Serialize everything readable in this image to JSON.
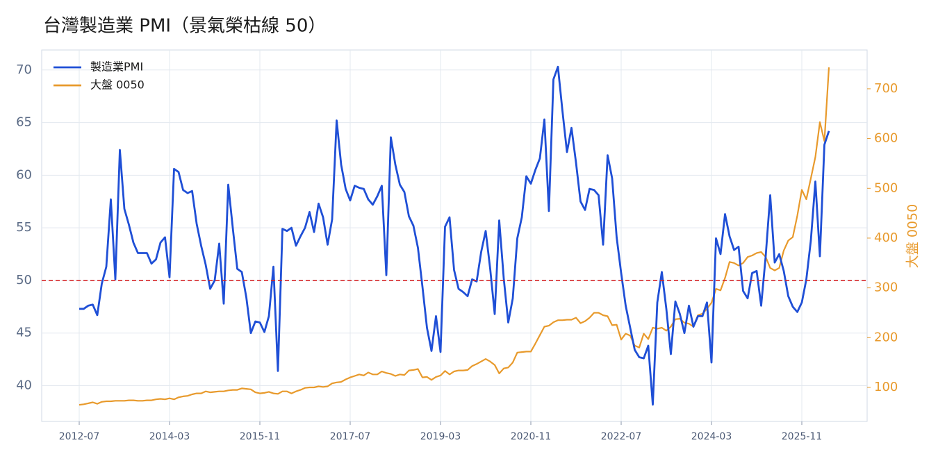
{
  "chart_data": {
    "type": "line",
    "title": "台灣製造業 PMI（景氣榮枯線 50）",
    "y2label": "大盤 0050",
    "categories": [
      "2012-07",
      null,
      null,
      null,
      null,
      null,
      null,
      null,
      null,
      null,
      null,
      null,
      null,
      null,
      null,
      null,
      null,
      null,
      null,
      null,
      "2014-03",
      null,
      null,
      null,
      null,
      null,
      null,
      null,
      null,
      null,
      null,
      null,
      null,
      null,
      null,
      null,
      null,
      null,
      null,
      null,
      "2015-11",
      null,
      null,
      null,
      null,
      null,
      null,
      null,
      null,
      null,
      null,
      null,
      null,
      null,
      null,
      null,
      null,
      null,
      null,
      null,
      "2017-07",
      null,
      null,
      null,
      null,
      null,
      null,
      null,
      null,
      null,
      null,
      null,
      null,
      null,
      null,
      null,
      null,
      null,
      null,
      null,
      "2019-03",
      null,
      null,
      null,
      null,
      null,
      null,
      null,
      null,
      null,
      null,
      null,
      null,
      null,
      null,
      null,
      null,
      null,
      null,
      null,
      "2020-11",
      null,
      null,
      null,
      null,
      null,
      null,
      null,
      null,
      null,
      null,
      null,
      null,
      null,
      null,
      null,
      null,
      null,
      null,
      null,
      "2022-07",
      null,
      null,
      null,
      null,
      null,
      null,
      null,
      null,
      null,
      null,
      null,
      null,
      null,
      null,
      null,
      null,
      null,
      null,
      null,
      "2024-03",
      null,
      null,
      null,
      null,
      null,
      null,
      null,
      null,
      null,
      null,
      null,
      null,
      null,
      null,
      null,
      null,
      null,
      null,
      null,
      "2025-11",
      null,
      null,
      null,
      null,
      null,
      null
    ],
    "series": [
      {
        "name": "製造業PMI",
        "color": "#1f4fd6",
        "axis": "y",
        "values": [
          47.3,
          47.3,
          47.6,
          47.7,
          46.7,
          49.7,
          51.3,
          57.7,
          50.1,
          62.4,
          56.8,
          55.3,
          53.6,
          52.6,
          52.6,
          52.6,
          51.6,
          52.0,
          53.6,
          54.1,
          50.3,
          60.6,
          60.3,
          58.6,
          58.3,
          58.5,
          55.4,
          53.3,
          51.5,
          49.2,
          50.0,
          53.5,
          47.8,
          59.1,
          55.0,
          51.1,
          50.8,
          48.4,
          45.0,
          46.1,
          46.0,
          45.1,
          46.6,
          51.3,
          41.4,
          54.9,
          54.7,
          55.0,
          53.3,
          54.2,
          55.0,
          56.5,
          54.6,
          57.3,
          56.0,
          53.4,
          55.8,
          65.2,
          61.0,
          58.7,
          57.6,
          59.0,
          58.8,
          58.7,
          57.7,
          57.2,
          58.0,
          59.0,
          50.5,
          63.6,
          61.0,
          59.1,
          58.4,
          56.1,
          55.2,
          53.1,
          49.4,
          45.5,
          43.3,
          46.6,
          43.2,
          55.1,
          56.0,
          51.0,
          49.2,
          48.9,
          48.5,
          50.1,
          49.9,
          52.7,
          54.7,
          51.1,
          46.8,
          55.7,
          50.2,
          46.0,
          48.3,
          54.0,
          56.0,
          59.9,
          59.2,
          60.5,
          61.6,
          65.3,
          56.6,
          69.1,
          70.3,
          66.1,
          62.2,
          64.5,
          61.2,
          57.5,
          56.7,
          58.7,
          58.6,
          58.1,
          53.4,
          61.9,
          59.7,
          54.1,
          50.7,
          47.6,
          45.5,
          43.4,
          42.7,
          42.6,
          43.8,
          38.2,
          47.9,
          50.8,
          47.3,
          43.0,
          48.0,
          46.8,
          45.0,
          47.6,
          45.6,
          46.6,
          46.6,
          47.9,
          42.2,
          54.0,
          52.5,
          56.3,
          54.2,
          52.9,
          53.2,
          49.0,
          48.3,
          50.7,
          50.9,
          47.6,
          52.3,
          58.1,
          51.7,
          52.5,
          50.9,
          48.5,
          47.5,
          47.0,
          47.9,
          50.1,
          53.8,
          59.4,
          52.3,
          62.9,
          64.2
        ]
      },
      {
        "name": "大盤 0050",
        "color": "#e89a2c",
        "axis": "y2",
        "values": [
          65,
          66,
          68,
          70,
          67,
          71,
          72,
          72,
          73,
          73,
          73,
          74,
          74,
          73,
          73,
          74,
          74,
          76,
          77,
          76,
          78,
          76,
          80,
          82,
          83,
          86,
          88,
          88,
          92,
          90,
          91,
          92,
          92,
          94,
          95,
          95,
          98,
          97,
          96,
          90,
          88,
          89,
          91,
          88,
          87,
          92,
          92,
          88,
          92,
          95,
          99,
          100,
          100,
          102,
          101,
          102,
          108,
          110,
          111,
          116,
          120,
          123,
          126,
          124,
          130,
          126,
          126,
          132,
          129,
          127,
          123,
          126,
          125,
          134,
          135,
          137,
          120,
          121,
          115,
          121,
          124,
          133,
          126,
          132,
          134,
          134,
          135,
          143,
          147,
          152,
          157,
          152,
          145,
          128,
          138,
          140,
          150,
          170,
          171,
          172,
          172,
          188,
          205,
          222,
          224,
          231,
          235,
          235,
          236,
          236,
          240,
          229,
          233,
          240,
          250,
          250,
          245,
          243,
          225,
          226,
          196,
          208,
          204,
          184,
          180,
          208,
          197,
          220,
          218,
          220,
          214,
          222,
          237,
          238,
          230,
          228,
          222,
          245,
          248,
          258,
          270,
          298,
          295,
          320,
          352,
          350,
          345,
          350,
          362,
          365,
          370,
          372,
          362,
          340,
          335,
          340,
          375,
          395,
          402,
          445,
          497,
          478,
          520,
          563,
          633,
          595,
          743
        ]
      }
    ],
    "ylim": [
      36.6,
      71.9
    ],
    "yticks": [
      40,
      45,
      50,
      55,
      60,
      65,
      70
    ],
    "y2lim": [
      31.6,
      778
    ],
    "y2ticks": [
      100,
      200,
      300,
      400,
      500,
      600,
      700
    ],
    "reference_line": {
      "value": 50,
      "color": "#d62728"
    },
    "grid": true,
    "legend": "upper-left"
  }
}
